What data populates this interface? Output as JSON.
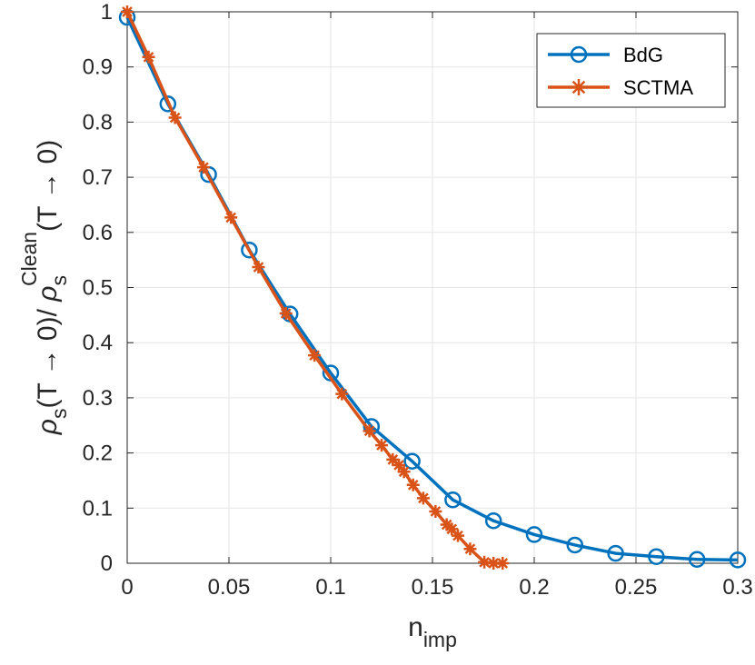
{
  "chart_data": {
    "type": "line",
    "xlabel": "n",
    "xlabel_sub": "imp",
    "ylabel": "ρs(T → 0)/ ρsClean(T → 0)",
    "ylabel_parts": {
      "rho1": "ρ",
      "sub1": "s",
      "mid": "(T → 0)/ ",
      "rho2": "ρ",
      "sub2": "s",
      "sup2": "Clean",
      "tail": "(T → 0)"
    },
    "xlim": [
      0,
      0.3
    ],
    "ylim": [
      0,
      1
    ],
    "xticks": [
      0,
      0.05,
      0.1,
      0.15,
      0.2,
      0.25,
      0.3
    ],
    "xtick_labels": [
      "0",
      "0.05",
      "0.1",
      "0.15",
      "0.2",
      "0.25",
      "0.3"
    ],
    "yticks": [
      0,
      0.1,
      0.2,
      0.3,
      0.4,
      0.5,
      0.6,
      0.7,
      0.8,
      0.9,
      1
    ],
    "ytick_labels": [
      "0",
      "0.1",
      "0.2",
      "0.3",
      "0.4",
      "0.5",
      "0.6",
      "0.7",
      "0.8",
      "0.9",
      "1"
    ],
    "grid": true,
    "legend_position": "top-right",
    "series": [
      {
        "name": "BdG",
        "color": "#0072bd",
        "marker": "circle",
        "x": [
          0,
          0.02,
          0.04,
          0.06,
          0.08,
          0.1,
          0.12,
          0.14,
          0.16,
          0.18,
          0.2,
          0.22,
          0.24,
          0.26,
          0.28,
          0.3
        ],
        "y": [
          0.99,
          0.833,
          0.705,
          0.568,
          0.452,
          0.345,
          0.248,
          0.185,
          0.115,
          0.077,
          0.052,
          0.033,
          0.018,
          0.012,
          0.007,
          0.006
        ]
      },
      {
        "name": "SCTMA",
        "color": "#d95319",
        "marker": "asterisk",
        "x": [
          0,
          0.0105,
          0.0235,
          0.0375,
          0.051,
          0.0645,
          0.078,
          0.092,
          0.1055,
          0.119,
          0.125,
          0.1305,
          0.1335,
          0.136,
          0.1405,
          0.1455,
          0.1515,
          0.157,
          0.1595,
          0.1625,
          0.1685,
          0.1755,
          0.18,
          0.1845
        ],
        "y": [
          1.0,
          0.918,
          0.808,
          0.718,
          0.627,
          0.537,
          0.453,
          0.377,
          0.307,
          0.24,
          0.214,
          0.188,
          0.178,
          0.166,
          0.142,
          0.118,
          0.094,
          0.07,
          0.062,
          0.05,
          0.026,
          0.002,
          0.0,
          0.0
        ]
      }
    ]
  }
}
